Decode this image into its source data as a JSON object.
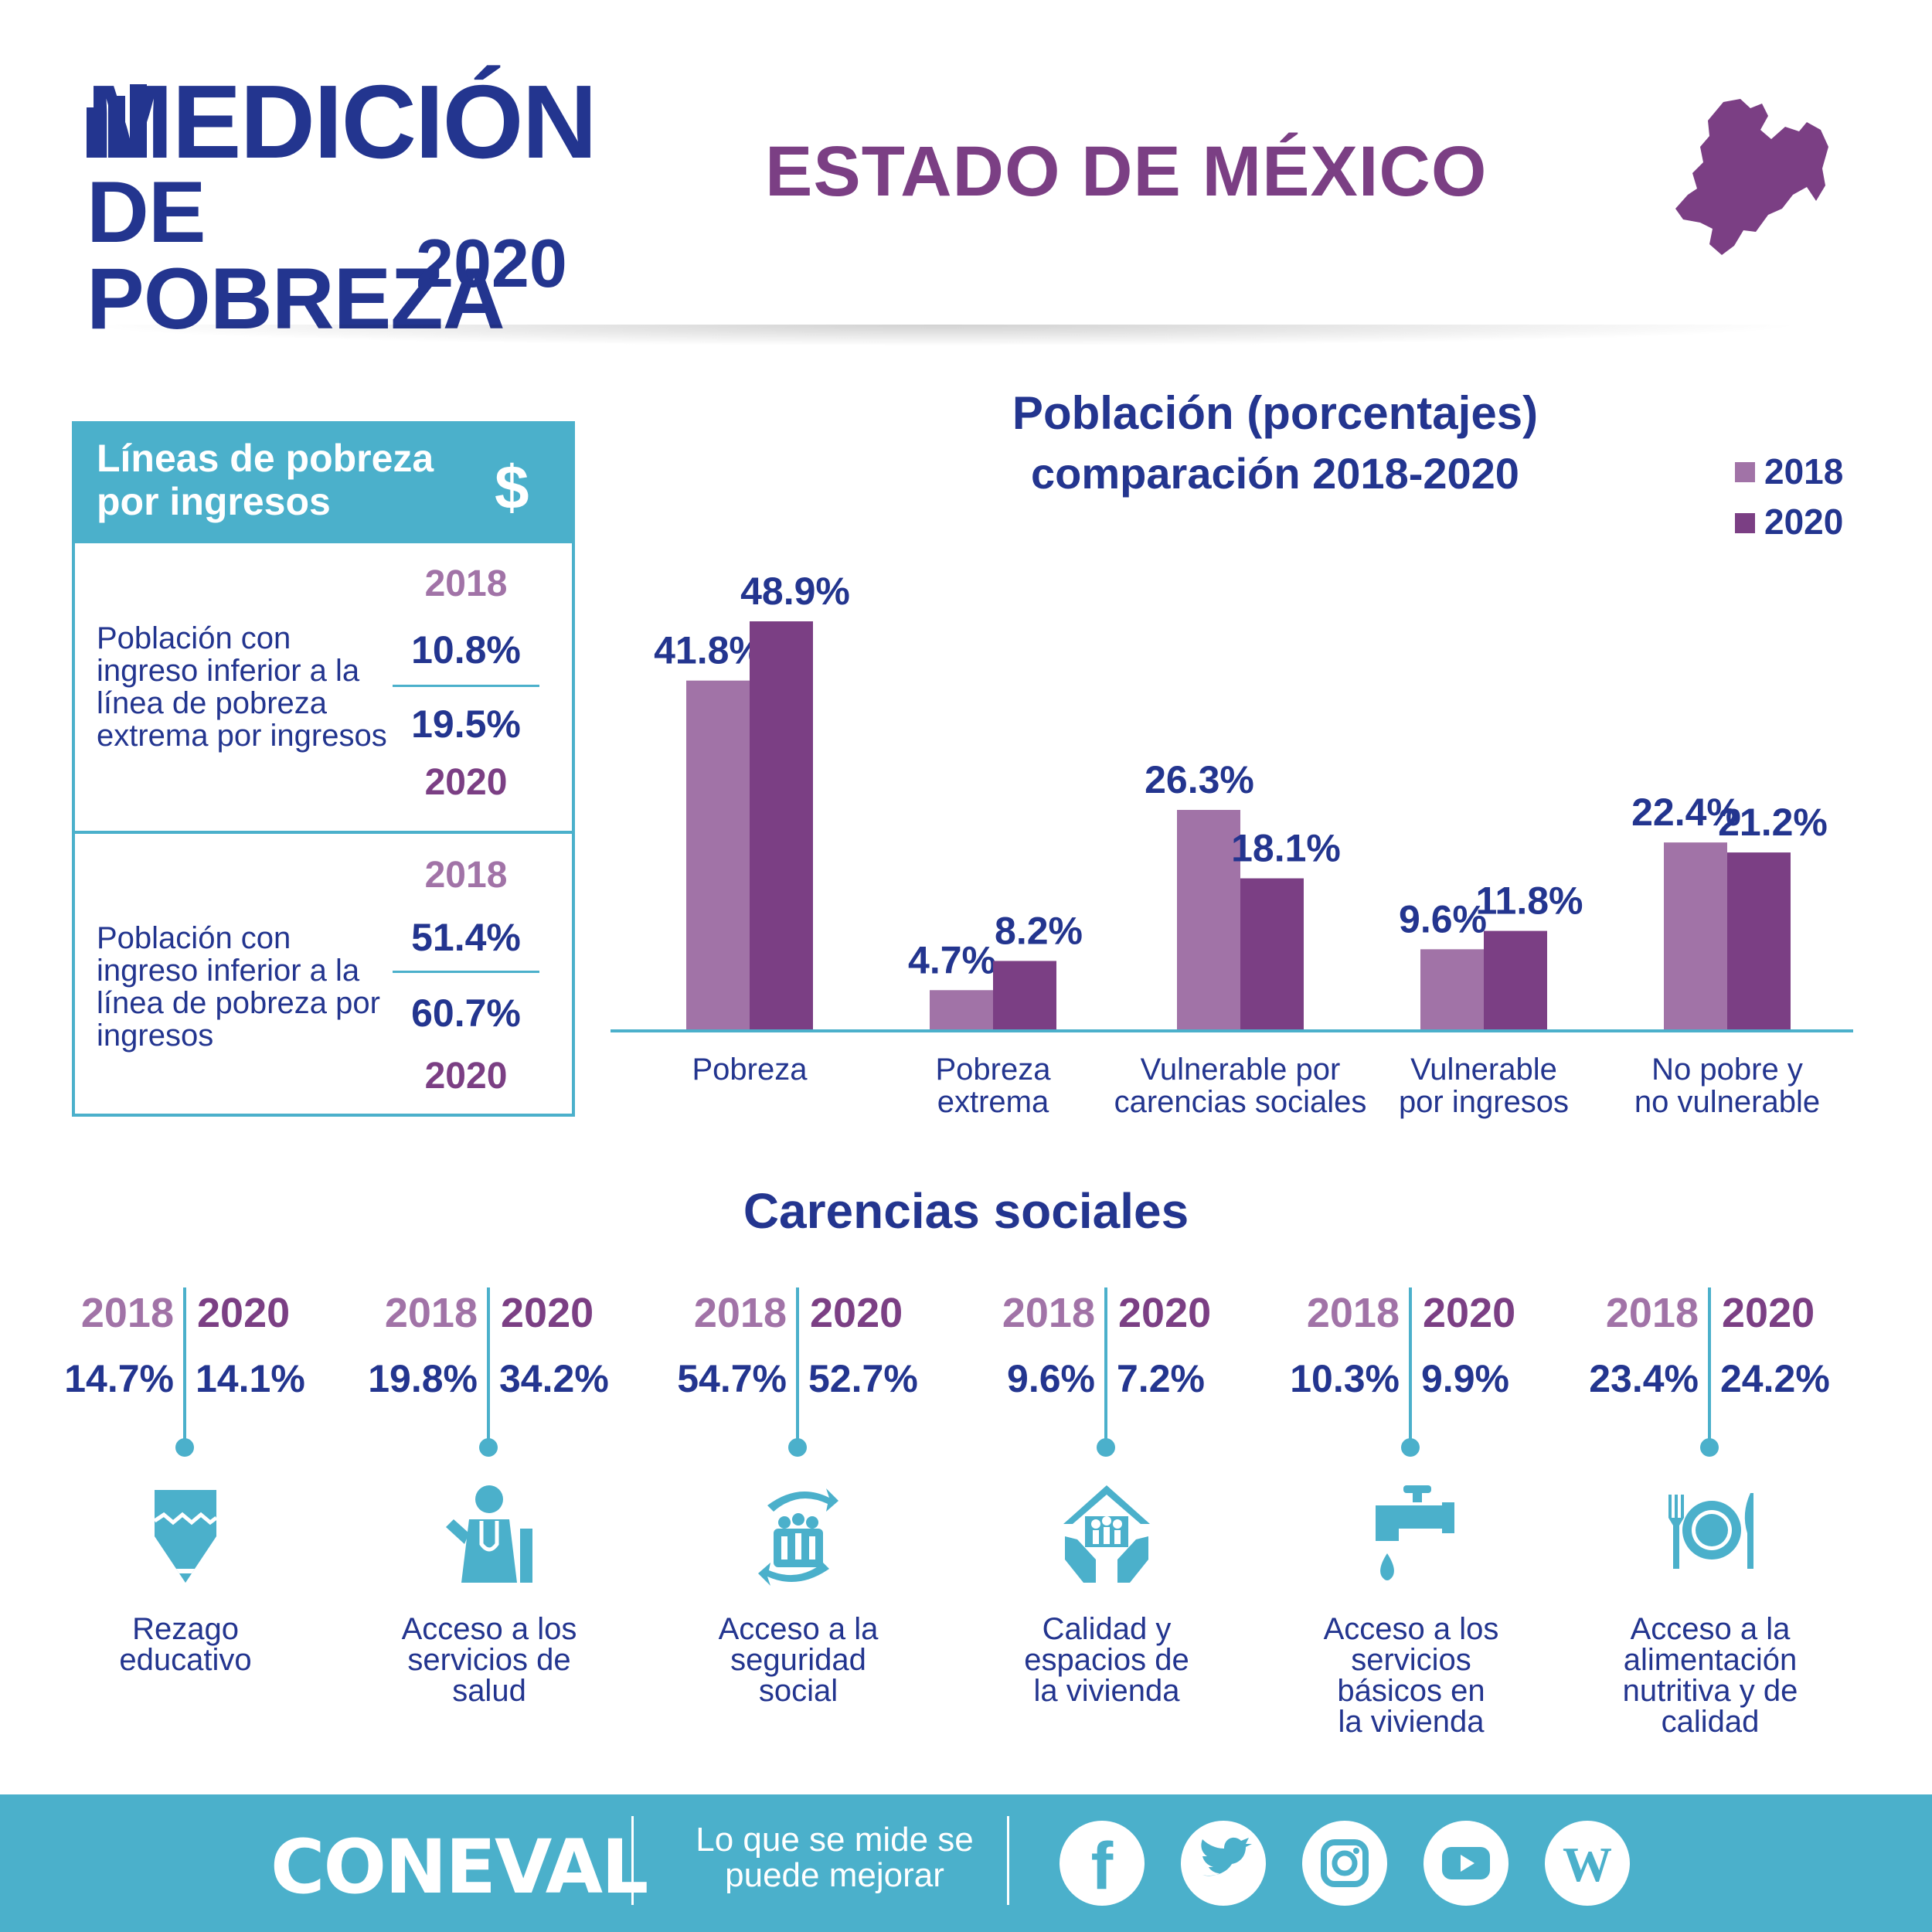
{
  "header": {
    "logo_line1": "MEDICIÓN",
    "logo_line2": "DE POBREZA",
    "logo_year": "2020",
    "state_title": "ESTADO DE MÉXICO",
    "map_icon": "estado-de-mexico-map-icon"
  },
  "income_lines": {
    "title": "Líneas de pobreza por ingresos",
    "icon": "dollar-icon",
    "rows": [
      {
        "desc": "Población con ingreso inferior a la línea de pobreza extrema por ingresos",
        "year_a": "2018",
        "value_a": "10.8%",
        "value_b": "19.5%",
        "year_b": "2020"
      },
      {
        "desc": "Población con ingreso inferior a la línea de pobreza por ingresos",
        "year_a": "2018",
        "value_a": "51.4%",
        "value_b": "60.7%",
        "year_b": "2020"
      }
    ]
  },
  "chart_data": {
    "type": "bar",
    "title": "Población (porcentajes)",
    "subtitle": "comparación 2018-2020",
    "legend_position": "top-right",
    "categories": [
      "Pobreza",
      "Pobreza extrema",
      "Vulnerable por carencias sociales",
      "Vulnerable por ingresos",
      "No pobre y no vulnerable"
    ],
    "category_lines": [
      [
        "Pobreza"
      ],
      [
        "Pobreza",
        "extrema"
      ],
      [
        "Vulnerable por",
        "carencias sociales"
      ],
      [
        "Vulnerable",
        "por ingresos"
      ],
      [
        "No pobre y",
        "no vulnerable"
      ]
    ],
    "series": [
      {
        "name": "2018",
        "color": "#a173a7",
        "values": [
          41.8,
          4.7,
          26.3,
          9.6,
          22.4
        ],
        "labels": [
          "41.8%",
          "4.7%",
          "26.3%",
          "9.6%",
          "22.4%"
        ]
      },
      {
        "name": "2020",
        "color": "#7b3f84",
        "values": [
          48.9,
          8.2,
          18.1,
          11.8,
          21.2
        ],
        "labels": [
          "48.9%",
          "8.2%",
          "18.1%",
          "11.8%",
          "21.2%"
        ]
      }
    ],
    "ylim": [
      0,
      48.9
    ],
    "xlabel": "",
    "ylabel": "",
    "grid": false
  },
  "carencias": {
    "title": "Carencias sociales",
    "items": [
      {
        "label": "Rezago educativo",
        "year_a": "2018",
        "year_b": "2020",
        "value_a": "14.7%",
        "value_b": "14.1%",
        "icon": "pencil-icon"
      },
      {
        "label": "Acceso a los servicios de salud",
        "year_a": "2018",
        "year_b": "2020",
        "value_a": "19.8%",
        "value_b": "34.2%",
        "icon": "doctor-icon"
      },
      {
        "label": "Acceso a la seguridad social",
        "year_a": "2018",
        "year_b": "2020",
        "value_a": "54.7%",
        "value_b": "52.7%",
        "icon": "family-hands-icon"
      },
      {
        "label": "Calidad y espacios de la vivienda",
        "year_a": "2018",
        "year_b": "2020",
        "value_a": "9.6%",
        "value_b": "7.2%",
        "icon": "house-hands-icon"
      },
      {
        "label": "Acceso a los servicios básicos en la vivienda",
        "year_a": "2018",
        "year_b": "2020",
        "value_a": "10.3%",
        "value_b": "9.9%",
        "icon": "faucet-icon"
      },
      {
        "label": "Acceso a la alimentación nutritiva y de calidad",
        "year_a": "2018",
        "year_b": "2020",
        "value_a": "23.4%",
        "value_b": "24.2%",
        "icon": "plate-cutlery-icon"
      }
    ]
  },
  "footer": {
    "brand": "CONEVAL",
    "slogan": "Lo que se mide se puede mejorar",
    "social_icons": [
      "facebook-icon",
      "twitter-icon",
      "instagram-icon",
      "youtube-icon",
      "wordpress-icon"
    ]
  },
  "colors": {
    "navy": "#23358f",
    "purple": "#7b3f84",
    "light_purple": "#a173a7",
    "teal": "#4bb0cb"
  }
}
